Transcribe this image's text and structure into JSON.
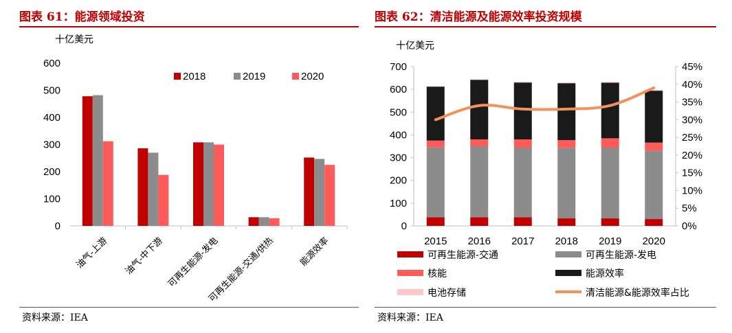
{
  "left": {
    "title": "图表 61：能源领域投资",
    "source": "资料来源：IEA",
    "chart_data": {
      "type": "bar",
      "unit_label": "十亿美元",
      "categories": [
        "油气-上游",
        "油气-中下游",
        "可再生能源-发电",
        "可再生能源-交通/供热",
        "能源效率"
      ],
      "series": [
        {
          "name": "2018",
          "color": "#c00000",
          "values": [
            478,
            286,
            308,
            32,
            252
          ]
        },
        {
          "name": "2019",
          "color": "#8c8c8c",
          "values": [
            482,
            270,
            308,
            32,
            247
          ]
        },
        {
          "name": "2020",
          "color": "#ff5b5b",
          "values": [
            312,
            188,
            300,
            28,
            225
          ]
        }
      ],
      "ylim": [
        0,
        600
      ],
      "yticks": [
        0,
        100,
        200,
        300,
        400,
        500,
        600
      ],
      "legend_position": "top-right"
    }
  },
  "right": {
    "title": "图表 62：清洁能源及能源效率投资规模",
    "source": "资料来源：IEA",
    "chart_data": {
      "type": "bar",
      "stacked": true,
      "unit_label": "十亿美元",
      "categories": [
        "2015",
        "2016",
        "2017",
        "2018",
        "2019",
        "2020"
      ],
      "series": [
        {
          "name": "可再生能源-交通",
          "color": "#c00000",
          "values": [
            38,
            38,
            38,
            33,
            33,
            30
          ]
        },
        {
          "name": "可再生能源-发电",
          "color": "#8c8c8c",
          "values": [
            307,
            312,
            306,
            310,
            311,
            300
          ]
        },
        {
          "name": "核能",
          "color": "#ff5b5b",
          "values": [
            30,
            30,
            36,
            34,
            41,
            36
          ]
        },
        {
          "name": "能源效率",
          "color": "#1a1a1a",
          "values": [
            237,
            262,
            250,
            250,
            244,
            228
          ]
        },
        {
          "name": "电池存储",
          "color": "#f9c7cc",
          "values": [
            2,
            2,
            3,
            3,
            4,
            4
          ]
        }
      ],
      "line": {
        "name": "清洁能源&能源效率占比",
        "color": "#f4905a",
        "values": [
          30,
          34,
          33,
          33,
          34,
          39
        ]
      },
      "ylim": [
        0,
        700
      ],
      "yticks": [
        0,
        100,
        200,
        300,
        400,
        500,
        600,
        700
      ],
      "y2lim": [
        0,
        45
      ],
      "y2ticks": [
        "0%",
        "5%",
        "10%",
        "15%",
        "20%",
        "25%",
        "30%",
        "35%",
        "40%",
        "45%"
      ],
      "legend_position": "bottom"
    }
  }
}
